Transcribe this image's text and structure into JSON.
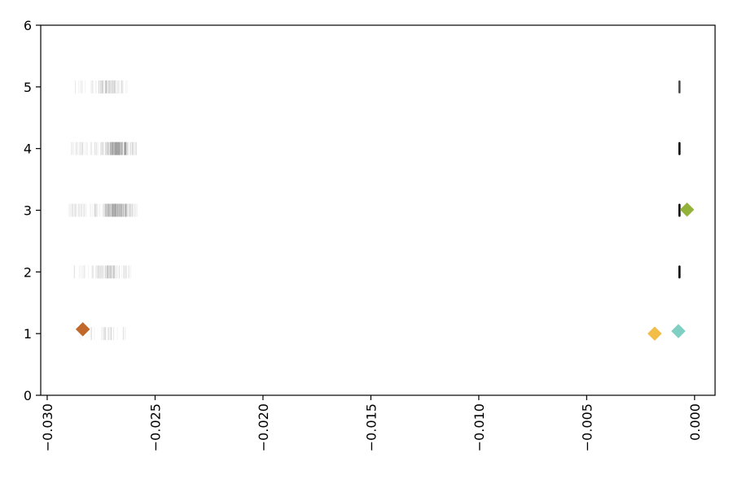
{
  "chart_data": {
    "type": "scatter",
    "title": "",
    "xlabel": "",
    "ylabel": "",
    "xlim": [
      -0.0303,
      0.00095
    ],
    "ylim": [
      0,
      6
    ],
    "grid": false,
    "x_ticks": [
      -0.03,
      -0.025,
      -0.02,
      -0.015,
      -0.01,
      -0.005,
      0.0
    ],
    "x_tick_labels": [
      "−0.030",
      "−0.025",
      "−0.020",
      "−0.015",
      "−0.010",
      "−0.005",
      "0.000"
    ],
    "y_ticks": [
      0,
      1,
      2,
      3,
      4,
      5,
      6
    ],
    "y_tick_labels": [
      "0",
      "1",
      "2",
      "3",
      "4",
      "5",
      "6"
    ],
    "strip_series": [
      {
        "y": 1,
        "x_range": [
          -0.0285,
          -0.0262
        ],
        "cluster_x": -0.0272,
        "density": 0.08,
        "right_x": -0.0007,
        "right_opacity": 0.0
      },
      {
        "y": 2,
        "x_range": [
          -0.0288,
          -0.0261
        ],
        "cluster_x": -0.0272,
        "density": 0.35,
        "right_x": -0.0007,
        "right_opacity": 1.0
      },
      {
        "y": 3,
        "x_range": [
          -0.029,
          -0.0258
        ],
        "cluster_x": -0.0268,
        "density": 0.9,
        "right_x": -0.0007,
        "right_opacity": 1.0
      },
      {
        "y": 4,
        "x_range": [
          -0.0289,
          -0.0258
        ],
        "cluster_x": -0.0268,
        "density": 0.9,
        "right_x": -0.0007,
        "right_opacity": 1.0
      },
      {
        "y": 5,
        "x_range": [
          -0.0287,
          -0.0261
        ],
        "cluster_x": -0.0272,
        "density": 0.3,
        "right_x": -0.0007,
        "right_opacity": 0.7
      }
    ],
    "markers": [
      {
        "x": -0.02835,
        "y": 1.07,
        "color": "#c0692a"
      },
      {
        "x": -0.00185,
        "y": 1.0,
        "color": "#f2bd48"
      },
      {
        "x": -0.00075,
        "y": 1.04,
        "color": "#80cfc3"
      },
      {
        "x": -0.00035,
        "y": 3.01,
        "color": "#93b23a"
      }
    ]
  }
}
